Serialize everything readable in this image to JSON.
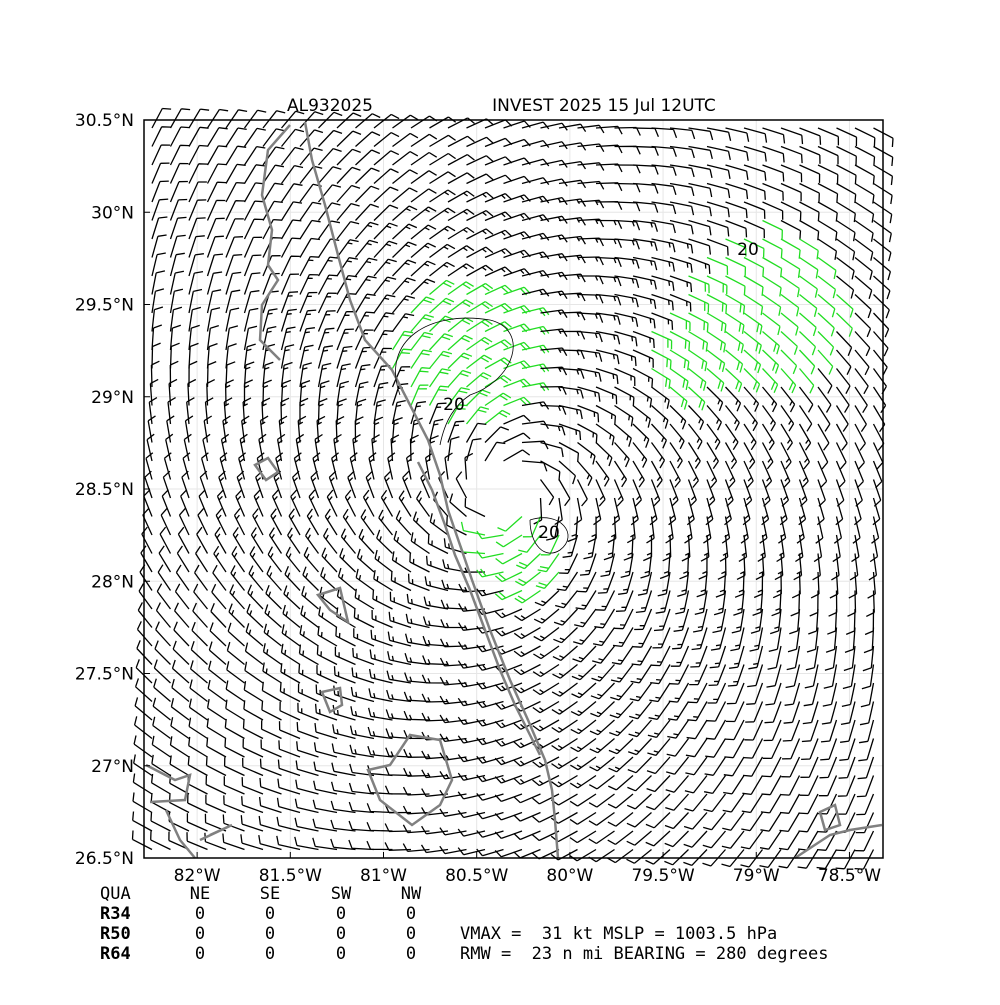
{
  "header": {
    "storm_id": "AL932025",
    "title": "INVEST 2025 15 Jul 12UTC"
  },
  "map": {
    "xlim": [
      -82.285,
      -78.32
    ],
    "ylim": [
      26.5,
      30.5
    ],
    "xticks": [
      {
        "value": -82,
        "label": "82°W"
      },
      {
        "value": -81.5,
        "label": "81.5°W"
      },
      {
        "value": -81,
        "label": "81°W"
      },
      {
        "value": -80.5,
        "label": "80.5°W"
      },
      {
        "value": -80,
        "label": "80°W"
      },
      {
        "value": -79.5,
        "label": "79.5°W"
      },
      {
        "value": -79,
        "label": "79°W"
      },
      {
        "value": -78.5,
        "label": "78.5°W"
      }
    ],
    "yticks": [
      {
        "value": 26.5,
        "label": "26.5°N"
      },
      {
        "value": 27,
        "label": "27°N"
      },
      {
        "value": 27.5,
        "label": "27.5°N"
      },
      {
        "value": 28,
        "label": "28°N"
      },
      {
        "value": 28.5,
        "label": "28.5°N"
      },
      {
        "value": 29,
        "label": "29°N"
      },
      {
        "value": 29.5,
        "label": "29.5°N"
      },
      {
        "value": 30,
        "label": "30°N"
      },
      {
        "value": 30.5,
        "label": "30.5°N"
      }
    ],
    "grid": true,
    "contour_labels": [
      "20",
      "20",
      "20"
    ]
  },
  "table": {
    "header": [
      "QUA",
      "NE",
      "SE",
      "SW",
      "NW"
    ],
    "rows": [
      [
        "R34",
        "0",
        "0",
        "0",
        "0"
      ],
      [
        "R50",
        "0",
        "0",
        "0",
        "0"
      ],
      [
        "R64",
        "0",
        "0",
        "0",
        "0"
      ]
    ]
  },
  "info": [
    "VMAX =  31 kt MSLP = 1003.5 hPa",
    "RMW =  23 n mi BEARING = 280 degrees"
  ]
}
